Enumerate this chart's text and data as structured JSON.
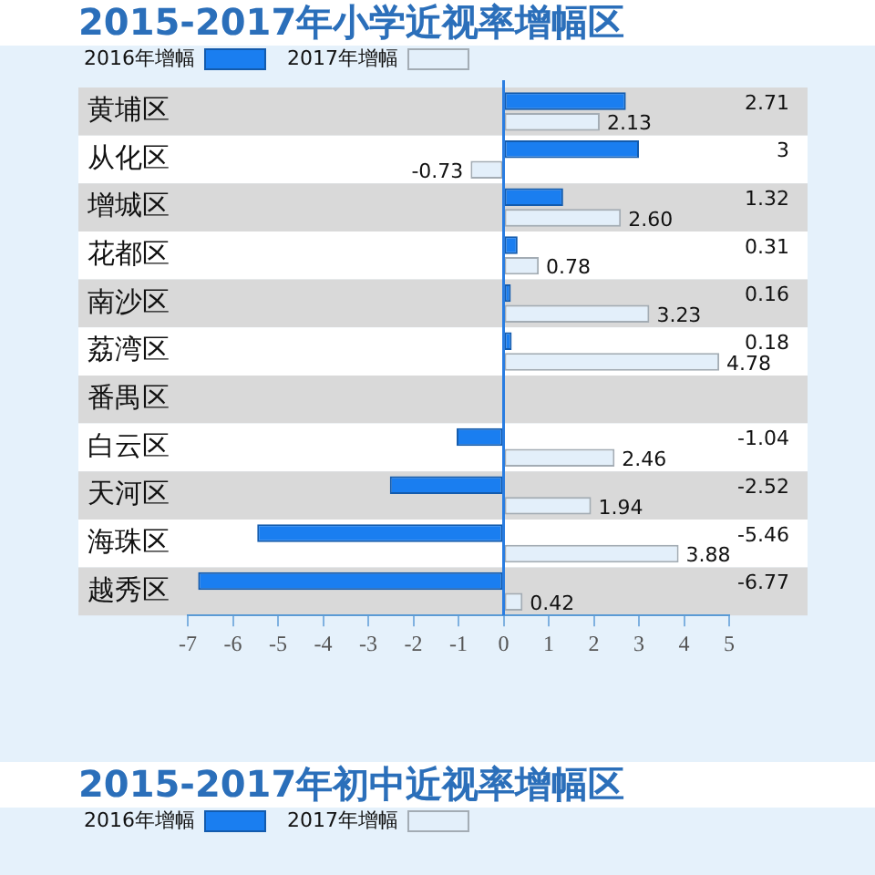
{
  "chart_data": [
    {
      "type": "bar",
      "orientation": "horizontal",
      "title": "2015-2017年小学近视率增幅区",
      "categories": [
        "黄埔区",
        "从化区",
        "增城区",
        "花都区",
        "南沙区",
        "荔湾区",
        "番禺区",
        "白云区",
        "天河区",
        "海珠区",
        "越秀区"
      ],
      "series": [
        {
          "name": "2016年增幅",
          "color": "#1a7ef0",
          "values": [
            2.71,
            3,
            1.32,
            0.31,
            0.16,
            0.18,
            null,
            -1.04,
            -2.52,
            -5.46,
            -6.77
          ],
          "value_labels": [
            "2.71",
            "3",
            "1.32",
            "0.31",
            "0.16",
            "0.18",
            null,
            "-1.04",
            "-2.52",
            "-5.46",
            "-6.77"
          ]
        },
        {
          "name": "2017年增幅",
          "color": "#e3effa",
          "values": [
            2.13,
            -0.73,
            2.6,
            0.78,
            3.23,
            4.78,
            null,
            2.46,
            1.94,
            3.88,
            0.42
          ],
          "value_labels": [
            "2.13",
            "-0.73",
            "2.60",
            "0.78",
            "3.23",
            "4.78",
            null,
            "2.46",
            "1.94",
            "3.88",
            "0.42"
          ]
        }
      ],
      "xlim": [
        -7,
        5
      ],
      "xticks": [
        -7,
        -6,
        -5,
        -4,
        -3,
        -2,
        -1,
        0,
        1,
        2,
        3,
        4,
        5
      ],
      "legend": "top left",
      "ref_lines": [
        {
          "axis": "x",
          "value": 0,
          "color": "#2a7de1"
        }
      ]
    },
    {
      "type": "other",
      "title": "2015-2017年初中近视率增幅区",
      "series": [
        {
          "name": "2016年增幅",
          "color": "#1a7ef0"
        },
        {
          "name": "2017年增幅",
          "color": "#e3effa"
        }
      ],
      "legend": "top left"
    }
  ]
}
